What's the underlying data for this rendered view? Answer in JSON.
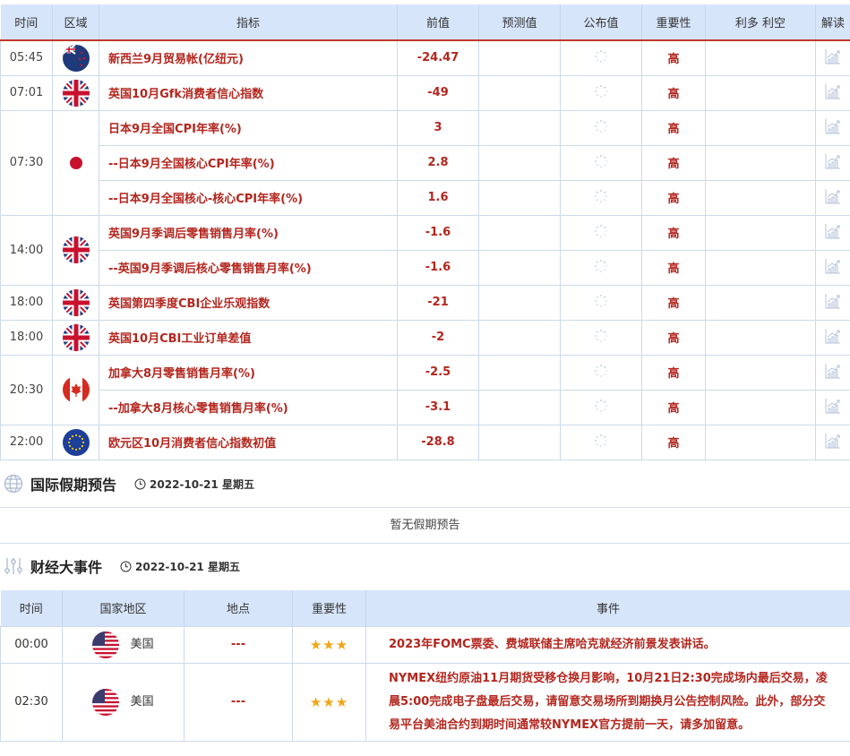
{
  "calendar": {
    "headers": [
      "时间",
      "区域",
      "指标",
      "前值",
      "预测值",
      "公布值",
      "重要性",
      "利多 利空",
      "解读"
    ],
    "groups": [
      {
        "time": "05:45",
        "flag": "nz",
        "rows": [
          {
            "indicator": "新西兰9月贸易帐(亿纽元)",
            "previous": "-24.47",
            "importance": "高"
          }
        ]
      },
      {
        "time": "07:01",
        "flag": "uk",
        "rows": [
          {
            "indicator": "英国10月Gfk消费者信心指数",
            "previous": "-49",
            "importance": "高"
          }
        ]
      },
      {
        "time": "07:30",
        "flag": "jp",
        "rows": [
          {
            "indicator": "日本9月全国CPI年率(%)",
            "previous": "3",
            "importance": "高"
          },
          {
            "indicator": "--日本9月全国核心CPI年率(%)",
            "previous": "2.8",
            "importance": "高"
          },
          {
            "indicator": "--日本9月全国核心-核心CPI年率(%)",
            "previous": "1.6",
            "importance": "高"
          }
        ]
      },
      {
        "time": "14:00",
        "flag": "uk",
        "rows": [
          {
            "indicator": "英国9月季调后零售销售月率(%)",
            "previous": "-1.6",
            "importance": "高"
          },
          {
            "indicator": "--英国9月季调后核心零售销售月率(%)",
            "previous": "-1.6",
            "importance": "高"
          }
        ]
      },
      {
        "time": "18:00",
        "flag": "uk",
        "rows": [
          {
            "indicator": "英国第四季度CBI企业乐观指数",
            "previous": "-21",
            "importance": "高"
          }
        ]
      },
      {
        "time": "18:00",
        "flag": "uk",
        "rows": [
          {
            "indicator": "英国10月CBI工业订单差值",
            "previous": "-2",
            "importance": "高"
          }
        ]
      },
      {
        "time": "20:30",
        "flag": "ca",
        "rows": [
          {
            "indicator": "加拿大8月零售销售月率(%)",
            "previous": "-2.5",
            "importance": "高"
          },
          {
            "indicator": "--加拿大8月核心零售销售月率(%)",
            "previous": "-3.1",
            "importance": "高"
          }
        ]
      },
      {
        "time": "22:00",
        "flag": "eu",
        "rows": [
          {
            "indicator": "欧元区10月消费者信心指数初值",
            "previous": "-28.8",
            "importance": "高"
          }
        ]
      }
    ]
  },
  "holidays": {
    "title": "国际假期预告",
    "date": "2022-10-21 星期五",
    "empty_text": "暂无假期预告",
    "icon": "globe-icon"
  },
  "events": {
    "title": "财经大事件",
    "date": "2022-10-21 星期五",
    "icon": "sliders-icon",
    "headers": [
      "时间",
      "国家地区",
      "地点",
      "重要性",
      "事件"
    ],
    "rows": [
      {
        "time": "00:00",
        "flag": "us",
        "country": "美国",
        "location": "---",
        "stars": 3,
        "event": "2023年FOMC票委、费城联储主席哈克就经济前景发表讲话。"
      },
      {
        "time": "02:30",
        "flag": "us",
        "country": "美国",
        "location": "---",
        "stars": 3,
        "event": "NYMEX纽约原油11月期货受移仓换月影响，10月21日2:30完成场内最后交易，凌晨5:00完成电子盘最后交易，请留意交易场所到期换月公告控制风险。此外，部分交易平台美油合约到期时间通常较NYMEX官方提前一天，请多加留意。"
      }
    ]
  },
  "colors": {
    "accent": "#b3261e",
    "header_bg": "#d7e5fb",
    "star": "#f2a516"
  }
}
